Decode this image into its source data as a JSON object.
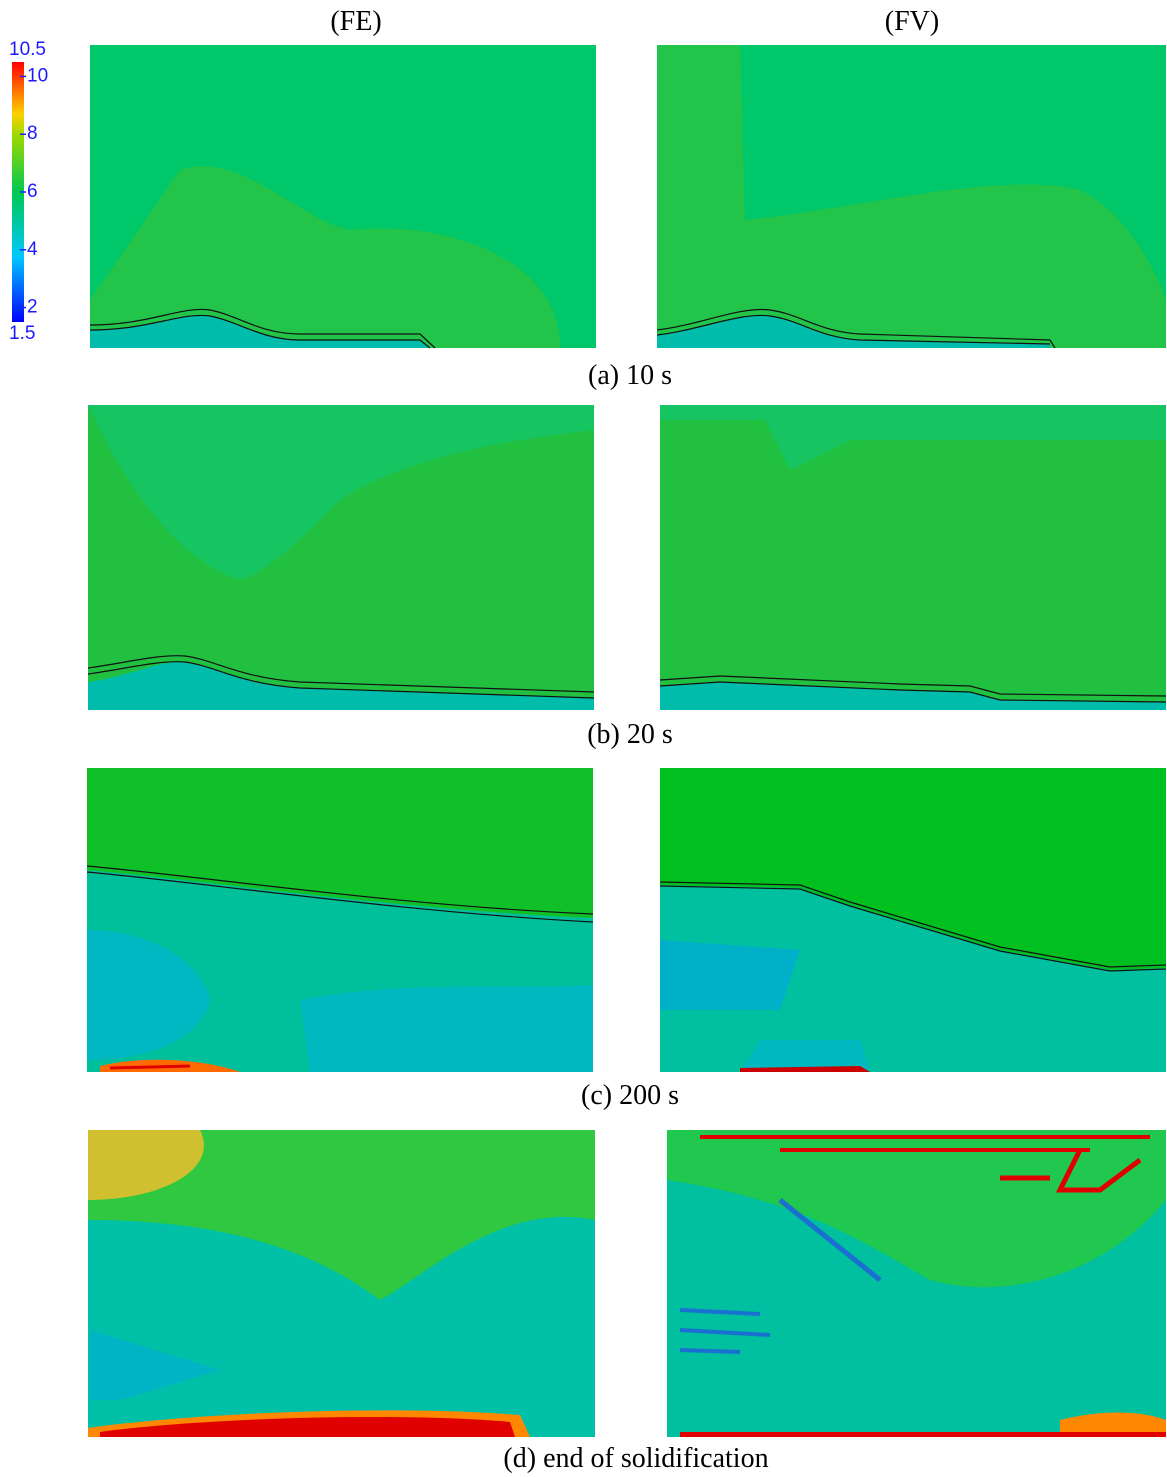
{
  "column_headers": [
    "(FE)",
    "(FV)"
  ],
  "colorbar": {
    "min": 1.5,
    "max": 10.5,
    "ticks": [
      10.5,
      10,
      8,
      6,
      4,
      2,
      1.5
    ]
  },
  "rows": [
    {
      "caption": "(a) 10 s"
    },
    {
      "caption": "(b) 20 s"
    },
    {
      "caption": "(c) 200 s"
    },
    {
      "caption": "(d) end of solidification"
    }
  ]
}
